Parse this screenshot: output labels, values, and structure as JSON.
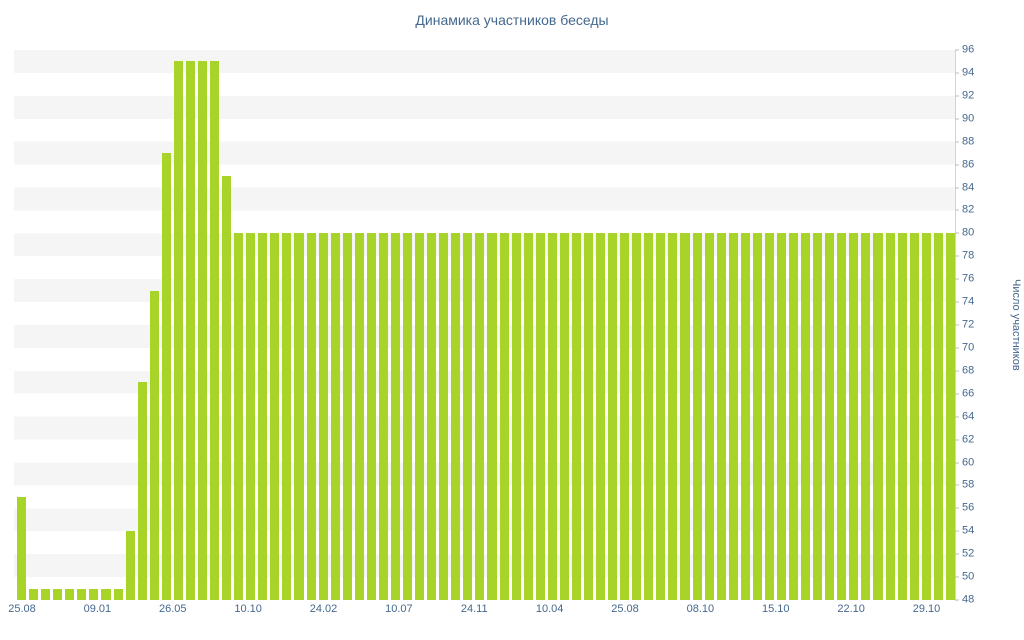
{
  "chart_data": {
    "type": "bar",
    "title": "Динамика участников беседы",
    "ylabel": "Число участников",
    "bar_color": "#a8d329",
    "grid_stripe_color": "#f5f5f5",
    "axis_text_color": "#45688e",
    "ylim": [
      48,
      96
    ],
    "ytick_step": 2,
    "legend": "none",
    "x_labels": [
      "25.08",
      "09.01",
      "26.05",
      "10.10",
      "24.02",
      "10.07",
      "24.11",
      "10.04",
      "25.08",
      "08.10",
      "15.10",
      "22.10",
      "29.10"
    ],
    "values": [
      57,
      49,
      49,
      49,
      49,
      49,
      49,
      49,
      49,
      54,
      67,
      75,
      87,
      95,
      95,
      95,
      95,
      85,
      80,
      80,
      80,
      80,
      80,
      80,
      80,
      80,
      80,
      80,
      80,
      80,
      80,
      80,
      80,
      80,
      80,
      80,
      80,
      80,
      80,
      80,
      80,
      80,
      80,
      80,
      80,
      80,
      80,
      80,
      80,
      80,
      80,
      80,
      80,
      80,
      80,
      80,
      80,
      80,
      80,
      80,
      80,
      80,
      80,
      80,
      80,
      80,
      80,
      80,
      80,
      80,
      80,
      80,
      80,
      80,
      80,
      80,
      80,
      80
    ]
  }
}
